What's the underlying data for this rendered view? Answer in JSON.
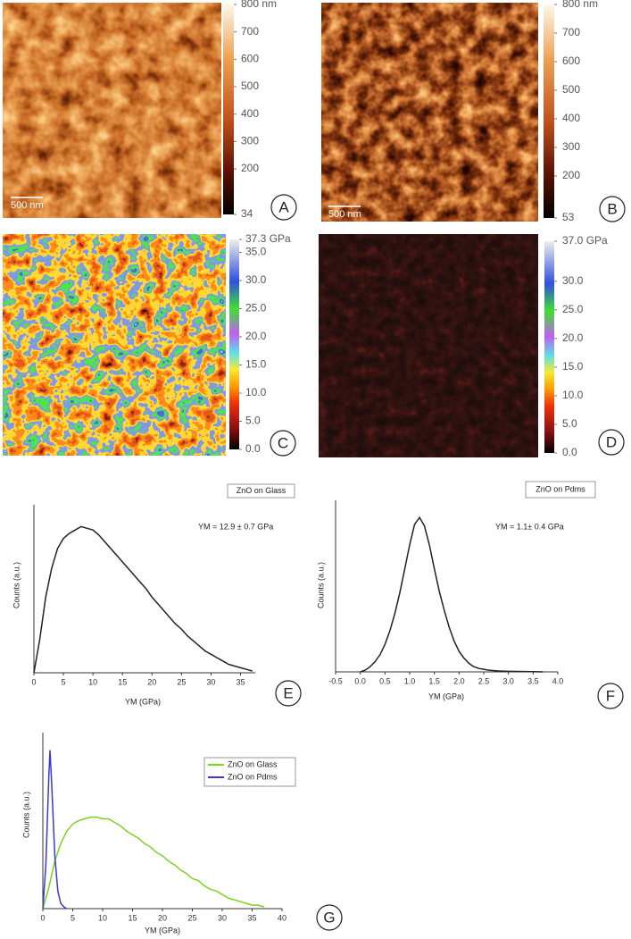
{
  "image_panels": [
    {
      "panel_label": "A",
      "scale_bar": "500 nm",
      "colorbar": {
        "clim": [
          34,
          800
        ],
        "ticks": [
          {
            "value": 800,
            "label": "800 nm"
          },
          700,
          600,
          500,
          400,
          300,
          200,
          34
        ]
      }
    },
    {
      "panel_label": "B",
      "scale_bar": "500 nm",
      "colorbar": {
        "clim": [
          53,
          800
        ],
        "ticks": [
          {
            "value": 800,
            "label": "800 nm"
          },
          700,
          600,
          500,
          400,
          300,
          200,
          53
        ]
      }
    },
    {
      "panel_label": "C",
      "colorbar": {
        "clim": [
          0,
          37.3
        ],
        "ticks": [
          {
            "value": 37.3,
            "label": "37.3 GPa"
          },
          {
            "value": 35,
            "label": "35.0"
          },
          {
            "value": 30,
            "label": "30.0"
          },
          {
            "value": 25,
            "label": "25.0"
          },
          {
            "value": 20,
            "label": "20.0"
          },
          {
            "value": 15,
            "label": "15.0"
          },
          {
            "value": 10,
            "label": "10.0"
          },
          {
            "value": 5,
            "label": "5.0"
          },
          {
            "value": 0,
            "label": "0.0"
          }
        ]
      }
    },
    {
      "panel_label": "D",
      "colorbar": {
        "clim": [
          0,
          37.0
        ],
        "ticks": [
          {
            "value": 37,
            "label": "37.0 GPa"
          },
          {
            "value": 30,
            "label": "30.0"
          },
          {
            "value": 25,
            "label": "25.0"
          },
          {
            "value": 20,
            "label": "20.0"
          },
          {
            "value": 15,
            "label": "15.0"
          },
          {
            "value": 10,
            "label": "10.0"
          },
          {
            "value": 5,
            "label": "5.0"
          },
          {
            "value": 0,
            "label": "0.0"
          }
        ]
      }
    }
  ],
  "chart_data": [
    {
      "type": "line",
      "panel_label": "E",
      "xlabel": "YM (GPa)",
      "ylabel": "Counts (a.u.)",
      "annotation": "YM = 12.9 ± 0.7 GPa",
      "x": [
        0,
        1,
        2,
        3,
        4,
        5,
        6,
        7,
        8,
        9,
        10,
        11,
        12,
        13,
        14,
        15,
        16,
        17,
        18,
        19,
        20,
        21,
        22,
        23,
        24,
        25,
        26,
        27,
        28,
        29,
        30,
        31,
        32,
        33,
        34,
        35,
        36,
        37
      ],
      "series": [
        {
          "name": "ZnO on Glass",
          "color": "#222222",
          "values": [
            0,
            20,
            45,
            62,
            74,
            80,
            83,
            85,
            87,
            86,
            85,
            82,
            78,
            74,
            70,
            66,
            62,
            58,
            54,
            50,
            45,
            41,
            37,
            33,
            29,
            26,
            22,
            19,
            16,
            13,
            11,
            9,
            7,
            5,
            4,
            3,
            2,
            1
          ]
        }
      ],
      "xlim": [
        0,
        37.5
      ],
      "xticks": [
        0,
        5,
        10,
        15,
        20,
        25,
        30,
        35
      ],
      "ylim": [
        0,
        100
      ]
    },
    {
      "type": "line",
      "panel_label": "F",
      "xlabel": "YM (GPa)",
      "ylabel": "Counts (a.u.)",
      "annotation": "YM = 1.1± 0.4 GPa",
      "x": [
        0.0,
        0.1,
        0.2,
        0.3,
        0.4,
        0.5,
        0.6,
        0.7,
        0.8,
        0.9,
        1.0,
        1.1,
        1.2,
        1.3,
        1.4,
        1.5,
        1.6,
        1.7,
        1.8,
        1.9,
        2.0,
        2.1,
        2.2,
        2.3,
        2.4,
        2.5,
        2.6,
        2.8,
        3.0,
        3.5,
        3.7
      ],
      "series": [
        {
          "name": "ZnO on Pdms",
          "color": "#222222",
          "values": [
            0,
            1,
            3,
            6,
            10,
            16,
            24,
            34,
            46,
            60,
            74,
            86,
            90,
            85,
            74,
            60,
            47,
            36,
            26,
            18,
            12,
            8,
            5,
            3,
            2,
            1.5,
            1,
            0.5,
            0.3,
            0.1,
            0
          ]
        }
      ],
      "xlim": [
        -0.5,
        4.0
      ],
      "xticks": [
        -0.5,
        {
          "value": 0,
          "label": "0.0"
        },
        0.5,
        {
          "value": 1,
          "label": "1.0"
        },
        1.5,
        {
          "value": 2,
          "label": "2.0"
        },
        2.5,
        {
          "value": 3,
          "label": "3.0"
        },
        3.5,
        {
          "value": 4,
          "label": "4.0"
        }
      ],
      "ylim": [
        0,
        100
      ]
    },
    {
      "type": "line",
      "panel_label": "G",
      "xlabel": "YM (GPa)",
      "ylabel": "Counts (a.u.)",
      "series": [
        {
          "name": "ZnO on Glass",
          "color": "#7ed321",
          "x": [
            0,
            1,
            2,
            3,
            4,
            5,
            6,
            7,
            8,
            9,
            10,
            11,
            12,
            13,
            14,
            15,
            16,
            17,
            18,
            19,
            20,
            21,
            22,
            23,
            24,
            25,
            26,
            27,
            28,
            29,
            30,
            31,
            32,
            33,
            34,
            35,
            36,
            37
          ],
          "values": [
            0,
            12,
            27,
            37,
            44,
            48,
            50,
            51,
            52,
            52,
            51,
            51,
            49,
            47,
            44,
            42,
            40,
            37,
            35,
            32,
            30,
            27,
            25,
            22,
            20,
            17,
            16,
            13,
            11,
            10,
            8,
            6,
            5,
            4,
            3,
            2,
            2,
            1
          ]
        },
        {
          "name": "ZnO on Pdms",
          "color": "#3a3ad0",
          "x": [
            0,
            0.5,
            1,
            1.2,
            1.5,
            2,
            2.5,
            3,
            3.5,
            4
          ],
          "values": [
            0,
            25,
            75,
            90,
            70,
            30,
            10,
            3,
            1,
            0
          ]
        }
      ],
      "xlim": [
        0,
        40
      ],
      "xticks": [
        0,
        5,
        10,
        15,
        20,
        25,
        30,
        35,
        40
      ],
      "ylim": [
        0,
        100
      ]
    }
  ]
}
